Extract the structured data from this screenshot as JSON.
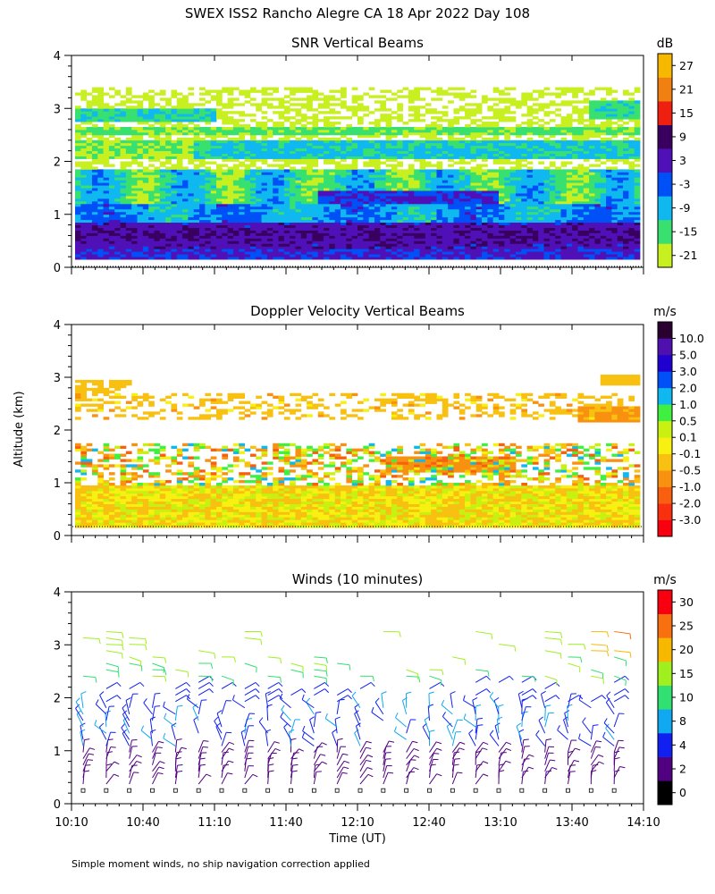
{
  "figure": {
    "title": "SWEX ISS2 Rancho Alegre CA  18 Apr 2022 Day 108",
    "ylabel": "Altitude (km)",
    "xlabel": "Time (UT)",
    "footnote": "Simple moment winds, no ship navigation correction applied"
  },
  "chart_data": [
    {
      "type": "heatmap",
      "title": "SNR Vertical Beams",
      "units": "dB",
      "ylim": [
        0,
        4
      ],
      "yticks": [
        "0",
        "1",
        "2",
        "3",
        "4"
      ],
      "colorbar": {
        "colors": [
          "#c8f020",
          "#38e070",
          "#10b8f0",
          "#0050f8",
          "#5010b8",
          "#3a0060",
          "#f02010",
          "#f08010",
          "#f8b800"
        ],
        "labels": [
          "-21",
          "-15",
          "-9",
          "-3",
          "3",
          "9",
          "15",
          "21",
          "27"
        ]
      }
    },
    {
      "type": "heatmap",
      "title": "Doppler Velocity Vertical Beams",
      "units": "m/s",
      "ylim": [
        0,
        4
      ],
      "yticks": [
        "0",
        "1",
        "2",
        "3",
        "4"
      ],
      "colorbar": {
        "colors": [
          "#f80010",
          "#f83010",
          "#f86010",
          "#f89010",
          "#f8c010",
          "#f8f010",
          "#c8f010",
          "#40f040",
          "#10b8f0",
          "#0050f8",
          "#2000d0",
          "#5010b0",
          "#2a0030"
        ],
        "labels": [
          "-3.0",
          "-2.0",
          "-1.0",
          "-0.5",
          "-0.1",
          "0.1",
          "0.5",
          "1.0",
          "2.0",
          "3.0",
          "5.0",
          "10.0"
        ]
      }
    },
    {
      "type": "barbs",
      "title": "Winds (10 minutes)",
      "units": "m/s",
      "ylim": [
        0,
        4
      ],
      "yticks": [
        "0",
        "1",
        "2",
        "3",
        "4"
      ],
      "xlim": [
        "10:10",
        "14:10"
      ],
      "xticks": [
        "10:10",
        "10:40",
        "11:10",
        "11:40",
        "12:10",
        "12:40",
        "13:10",
        "13:40",
        "14:10"
      ],
      "colorbar": {
        "colors": [
          "#000000",
          "#500080",
          "#1020f0",
          "#10a8f0",
          "#30e070",
          "#a0f020",
          "#f8b800",
          "#f87010",
          "#f80010"
        ],
        "labels": [
          "0",
          "2",
          "4",
          "8",
          "10",
          "15",
          "20",
          "25",
          "30"
        ]
      }
    }
  ]
}
